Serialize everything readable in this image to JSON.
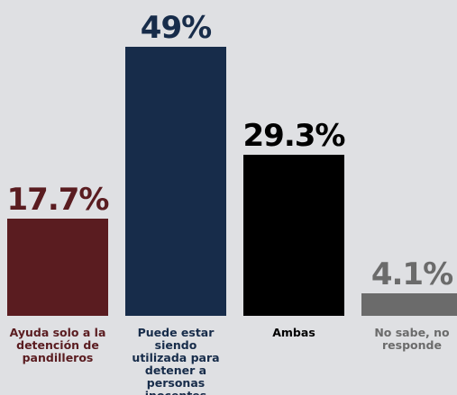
{
  "chart_data": {
    "type": "bar",
    "categories": [
      "Ayuda solo a la detención de pandilleros",
      "Puede estar siendo utilizada para detener a personas inocentes",
      "Ambas",
      "No sabe, no responde"
    ],
    "values": [
      17.7,
      49,
      29.3,
      4.1
    ],
    "value_labels": [
      "17.7%",
      "49%",
      "29.3%",
      "4.1%"
    ],
    "colors": [
      "#5a1c20",
      "#172c4a",
      "#000000",
      "#6b6b6b"
    ],
    "label_colors": [
      "#5a1c20",
      "#172c4a",
      "#000000",
      "#6b6b6b"
    ],
    "title": "",
    "xlabel": "",
    "ylabel": "",
    "ylim": [
      0,
      49
    ],
    "grid": false,
    "legend": "none"
  }
}
